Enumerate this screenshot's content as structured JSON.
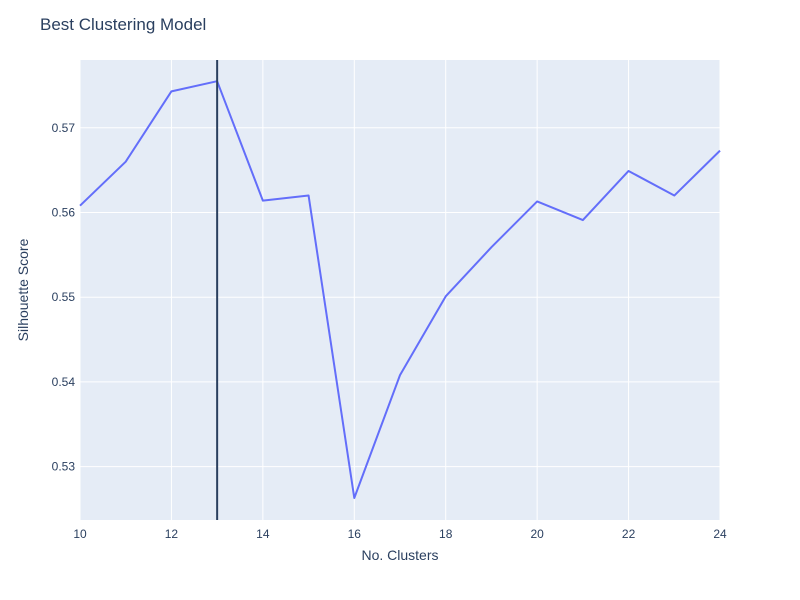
{
  "chart_data": {
    "type": "line",
    "title": "Best Clustering Model",
    "xlabel": "No. Clusters",
    "ylabel": "Silhouette Score",
    "xlim": [
      10,
      24
    ],
    "ylim": [
      0.5237,
      0.578
    ],
    "x_ticks": [
      10,
      12,
      14,
      16,
      18,
      20,
      22,
      24
    ],
    "y_ticks": [
      0.53,
      0.54,
      0.55,
      0.56,
      0.57
    ],
    "grid": true,
    "plot_bgcolor": "#e5ecf6",
    "series": [
      {
        "color": "#636efa",
        "x": [
          10,
          11,
          12,
          13,
          14,
          15,
          16,
          17,
          18,
          19,
          20,
          21,
          22,
          23,
          24
        ],
        "values": [
          0.5608,
          0.566,
          0.5743,
          0.5755,
          0.5614,
          0.562,
          0.5263,
          0.5408,
          0.5501,
          0.5559,
          0.5613,
          0.5591,
          0.5649,
          0.562,
          0.5673
        ]
      }
    ],
    "vline": {
      "x": 13,
      "color": "#2a3f5f"
    }
  }
}
